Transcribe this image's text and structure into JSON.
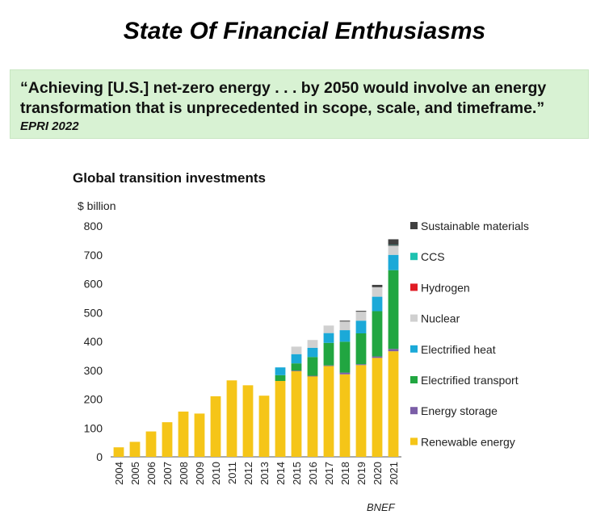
{
  "page": {
    "title": "State Of Financial Enthusiasms",
    "quote": "“Achieving [U.S.] net-zero energy . . . by 2050 would involve an energy transformation that is unprecedented in scope, scale, and timeframe.”",
    "quote_source": "EPRI 2022"
  },
  "chart_data": {
    "type": "bar",
    "stacked": true,
    "title": "Global transition investments",
    "ylabel": "$ billion",
    "xlabel": "",
    "source": "BNEF",
    "ylim": [
      0,
      800
    ],
    "yticks": [
      0,
      100,
      200,
      300,
      400,
      500,
      600,
      700,
      800
    ],
    "grid": false,
    "legend_position": "right",
    "categories": [
      "2004",
      "2005",
      "2006",
      "2007",
      "2008",
      "2009",
      "2010",
      "2011",
      "2012",
      "2013",
      "2014",
      "2015",
      "2016",
      "2017",
      "2018",
      "2019",
      "2020",
      "2021"
    ],
    "series": [
      {
        "name": "Renewable energy",
        "color": "#f5c518",
        "values": [
          33,
          52,
          88,
          120,
          157,
          150,
          210,
          265,
          248,
          212,
          263,
          298,
          280,
          315,
          286,
          318,
          343,
          366
        ]
      },
      {
        "name": "Energy storage",
        "color": "#7b5ea7",
        "values": [
          0,
          0,
          0,
          0,
          0,
          0,
          0,
          0,
          0,
          0,
          0,
          1,
          1,
          2,
          6,
          3,
          5,
          8
        ]
      },
      {
        "name": "Electrified transport",
        "color": "#21a641",
        "values": [
          0,
          0,
          0,
          0,
          0,
          0,
          0,
          0,
          0,
          0,
          20,
          25,
          65,
          78,
          107,
          107,
          157,
          273
        ]
      },
      {
        "name": "Electrified heat",
        "color": "#1ba9d8",
        "values": [
          0,
          0,
          0,
          0,
          0,
          0,
          0,
          0,
          0,
          0,
          27,
          32,
          32,
          34,
          40,
          44,
          50,
          53
        ]
      },
      {
        "name": "Nuclear",
        "color": "#d0d0d0",
        "values": [
          0,
          0,
          0,
          0,
          0,
          0,
          0,
          0,
          0,
          0,
          0,
          26,
          27,
          26,
          30,
          31,
          33,
          32
        ]
      },
      {
        "name": "Hydrogen",
        "color": "#e01b24",
        "values": [
          0,
          0,
          0,
          0,
          0,
          0,
          0,
          0,
          0,
          0,
          0,
          0,
          0,
          0,
          0,
          0,
          0,
          1
        ]
      },
      {
        "name": "CCS",
        "color": "#1ec2b0",
        "values": [
          0,
          0,
          0,
          0,
          0,
          0,
          0,
          0,
          0,
          0,
          0,
          0,
          0,
          0,
          0,
          0,
          0,
          1
        ]
      },
      {
        "name": "Sustainable materials",
        "color": "#404040",
        "values": [
          0,
          0,
          0,
          0,
          0,
          0,
          0,
          0,
          0,
          0,
          0,
          0,
          0,
          0,
          3,
          3,
          8,
          20
        ]
      }
    ],
    "legend_order": [
      "Sustainable materials",
      "CCS",
      "Hydrogen",
      "Nuclear",
      "Electrified heat",
      "Electrified transport",
      "Energy storage",
      "Renewable energy"
    ]
  }
}
